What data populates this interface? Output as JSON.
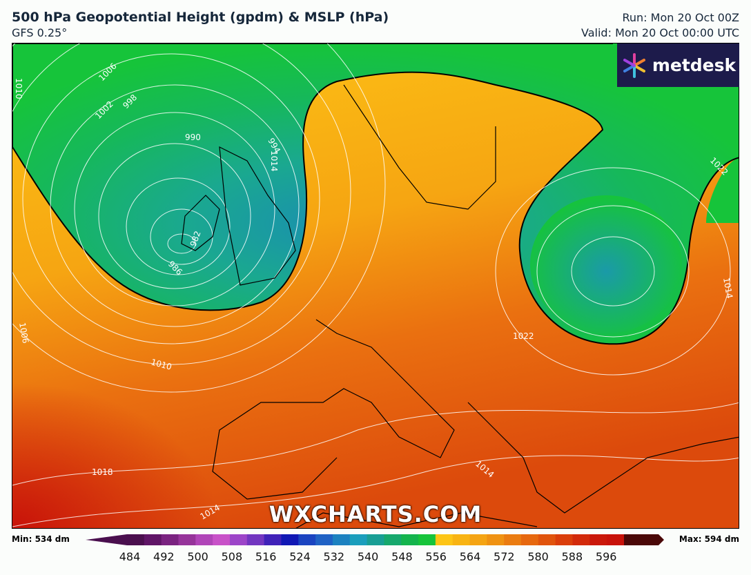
{
  "header": {
    "title": "500 hPa Geopotential Height (gpdm) & MSLP (hPa)",
    "model": "GFS 0.25°",
    "run": "Run: Mon 20 Oct 00Z",
    "valid": "Valid: Mon 20 Oct 00:00 UTC"
  },
  "logo": {
    "text": "metdesk",
    "icon": "pinwheel-icon"
  },
  "watermark": "WXCHARTS.COM",
  "map": {
    "isobar_labels": [
      "1010",
      "1006",
      "1002",
      "998",
      "990",
      "994",
      "986",
      "982",
      "1014",
      "1022",
      "1014",
      "1006",
      "1010",
      "1022",
      "1014",
      "1018",
      "1014"
    ],
    "colors": {
      "low_core": "#1a9aa8",
      "low": "#16c43a",
      "mid": "#fdc515",
      "high": "#e96a10",
      "very_high": "#cc1a0a"
    }
  },
  "colorbar": {
    "min_label": "Min: 534 dm",
    "max_label": "Max: 594 dm",
    "ticks": [
      "484",
      "492",
      "500",
      "508",
      "516",
      "524",
      "532",
      "540",
      "548",
      "556",
      "564",
      "572",
      "580",
      "588",
      "596"
    ],
    "colors": [
      "#4a0f4e",
      "#5f1566",
      "#7a2380",
      "#96349a",
      "#b045b8",
      "#c852c8",
      "#9c45c8",
      "#7236c0",
      "#3f22b8",
      "#1018b4",
      "#1a44c0",
      "#1f62c4",
      "#1c82c0",
      "#1a9ebc",
      "#189e94",
      "#16a86c",
      "#13b44c",
      "#16c43a",
      "#fdc515",
      "#f8b412",
      "#f4a412",
      "#ef9211",
      "#ea7c10",
      "#e6680e",
      "#e0540c",
      "#da3e0a",
      "#d22a0a",
      "#ca180a",
      "#c8120a"
    ],
    "end_colors": [
      "#4a0f4e",
      "#4a0808"
    ]
  }
}
